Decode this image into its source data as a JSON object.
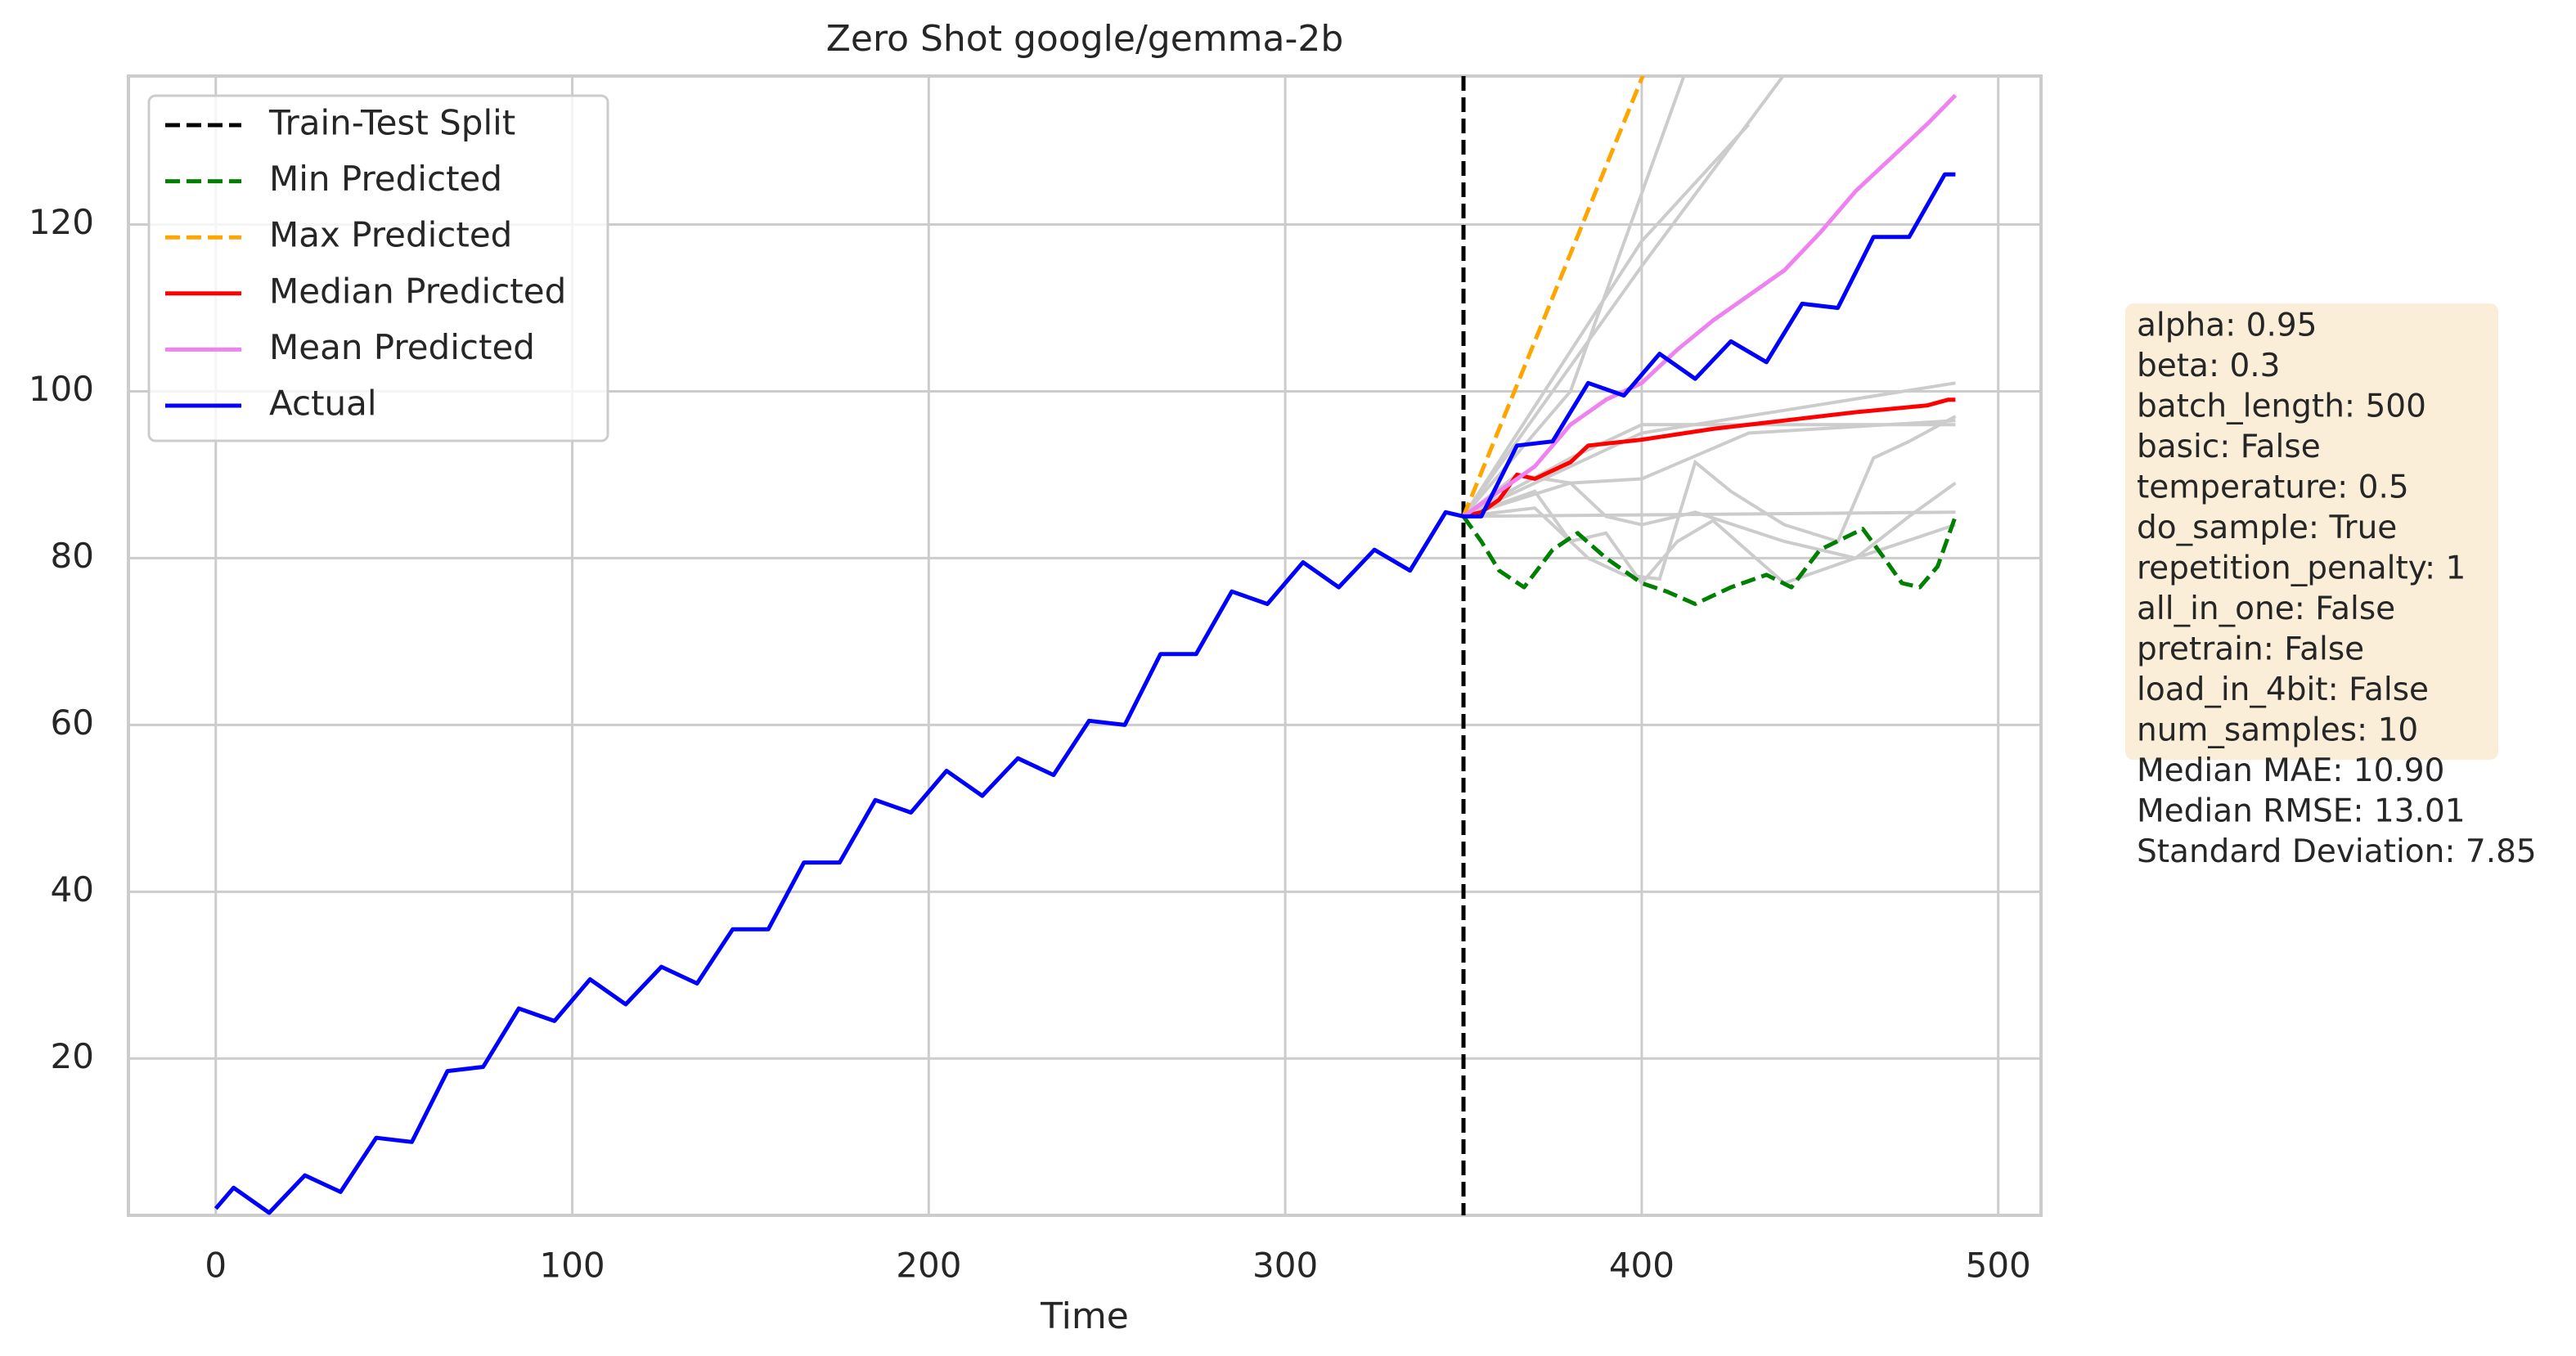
{
  "chart_data": {
    "type": "line",
    "title": "Zero Shot google/gemma-2b",
    "xlabel": "Time",
    "xlim": [
      -24.5,
      512
    ],
    "ylim": [
      1.2,
      137.8
    ],
    "xticks": [
      0,
      100,
      200,
      300,
      400,
      500
    ],
    "yticks": [
      20,
      40,
      60,
      80,
      100,
      120
    ],
    "grid": true,
    "legend": "upper left",
    "split": {
      "name": "Train-Test Split",
      "x": 350,
      "color": "#000000"
    },
    "samples": [
      {
        "color": "#cccccc",
        "x": [
          350,
          380,
          412
        ],
        "values": [
          85,
          100,
          138
        ]
      },
      {
        "color": "#cccccc",
        "x": [
          350,
          400,
          440
        ],
        "values": [
          85,
          115,
          138
        ]
      },
      {
        "color": "#cccccc",
        "x": [
          350,
          400,
          430
        ],
        "values": [
          85,
          118,
          132
        ]
      },
      {
        "color": "#cccccc",
        "x": [
          350,
          380,
          400,
          488
        ],
        "values": [
          85,
          92,
          96,
          96
        ]
      },
      {
        "color": "#cccccc",
        "x": [
          350,
          400,
          488
        ],
        "values": [
          85,
          95,
          101
        ]
      },
      {
        "color": "#cccccc",
        "x": [
          350,
          488
        ],
        "values": [
          85,
          85.5
        ]
      },
      {
        "color": "#cccccc",
        "x": [
          350,
          370,
          385,
          395,
          405,
          415,
          425,
          440,
          455,
          465,
          475,
          488
        ],
        "values": [
          85,
          86,
          80,
          78,
          77.5,
          91.5,
          88,
          84,
          82,
          92,
          94,
          97
        ]
      },
      {
        "color": "#cccccc",
        "x": [
          350,
          380,
          390,
          400,
          415,
          440,
          460,
          475,
          488
        ],
        "values": [
          85,
          89,
          85,
          84,
          85.5,
          82,
          80,
          85,
          89
        ]
      },
      {
        "color": "#cccccc",
        "x": [
          350,
          370,
          380,
          390,
          400,
          410,
          420,
          440,
          460,
          488
        ],
        "values": [
          85,
          88,
          82,
          83,
          77,
          82,
          84.5,
          77,
          80,
          84
        ]
      },
      {
        "color": "#cccccc",
        "x": [
          350,
          365,
          380,
          400,
          430,
          488
        ],
        "values": [
          85,
          90,
          89,
          89.5,
          95,
          96.5
        ]
      }
    ],
    "series": [
      {
        "name": "Min Predicted",
        "color": "#008000",
        "dashed": true,
        "x": [
          350,
          355,
          360,
          367,
          375,
          382,
          390,
          400,
          407,
          415,
          425,
          435,
          442,
          450,
          462,
          468,
          473,
          478,
          483,
          488
        ],
        "values": [
          85,
          82,
          78.5,
          76.5,
          81,
          83,
          80,
          77,
          76,
          74.5,
          76.5,
          78,
          76.5,
          81,
          83.5,
          80,
          77,
          76.5,
          79,
          85
        ]
      },
      {
        "name": "Max Predicted",
        "color": "#ffa500",
        "dashed": true,
        "x": [
          350,
          360,
          370,
          380,
          390,
          400,
          405
        ],
        "values": [
          85,
          95.5,
          106,
          116.5,
          127,
          137.5,
          143
        ]
      },
      {
        "name": "Median Predicted",
        "color": "#ff0000",
        "dashed": false,
        "x": [
          350,
          355,
          360,
          365,
          370,
          375,
          380,
          385,
          400,
          420,
          440,
          460,
          480,
          486,
          488
        ],
        "values": [
          85,
          85.5,
          87,
          90,
          89.5,
          90.5,
          91.5,
          93.5,
          94.2,
          95.5,
          96.5,
          97.5,
          98.3,
          99,
          99
        ]
      },
      {
        "name": "Mean Predicted",
        "color": "#ee82ee",
        "dashed": false,
        "x": [
          350,
          360,
          370,
          380,
          390,
          400,
          410,
          420,
          430,
          440,
          450,
          460,
          470,
          480,
          488
        ],
        "values": [
          85,
          88,
          91,
          96,
          99,
          101,
          105,
          108.5,
          111.5,
          114.5,
          119,
          124,
          128,
          132,
          135.5
        ]
      },
      {
        "name": "Actual",
        "color": "#0000ff",
        "dashed": false,
        "x": [
          0,
          5,
          15,
          25,
          35,
          45,
          55,
          65,
          75,
          85,
          95,
          105,
          115,
          125,
          135,
          145,
          155,
          165,
          175,
          185,
          195,
          205,
          215,
          225,
          235,
          245,
          255,
          265,
          275,
          285,
          295,
          305,
          315,
          325,
          335,
          345,
          350,
          355,
          365,
          375,
          385,
          395,
          405,
          415,
          425,
          435,
          445,
          455,
          465,
          475,
          485,
          488
        ],
        "values": [
          2,
          4.5,
          1.5,
          6,
          4,
          10.5,
          10,
          18.5,
          19,
          26,
          24.5,
          29.5,
          26.5,
          31,
          29,
          35.5,
          35.5,
          43.5,
          43.5,
          51,
          49.5,
          54.5,
          51.5,
          56,
          54,
          60.5,
          60,
          68.5,
          68.5,
          76,
          74.5,
          79.5,
          76.5,
          81,
          78.5,
          85.5,
          85,
          85,
          93.5,
          94,
          101,
          99.5,
          104.5,
          101.5,
          106,
          103.5,
          110.5,
          110,
          118.5,
          118.5,
          126,
          126
        ]
      }
    ],
    "annotation": {
      "color": "#f5deb3",
      "lines": [
        "alpha: 0.95",
        "beta: 0.3",
        "batch_length: 500",
        "basic: False",
        "temperature: 0.5",
        "do_sample: True",
        "repetition_penalty: 1",
        "all_in_one: False",
        "pretrain: False",
        "load_in_4bit: False",
        "num_samples: 10"
      ],
      "stats": [
        "Median MAE: 10.90",
        "Median RMSE: 13.01",
        "Standard Deviation: 7.85"
      ]
    }
  }
}
